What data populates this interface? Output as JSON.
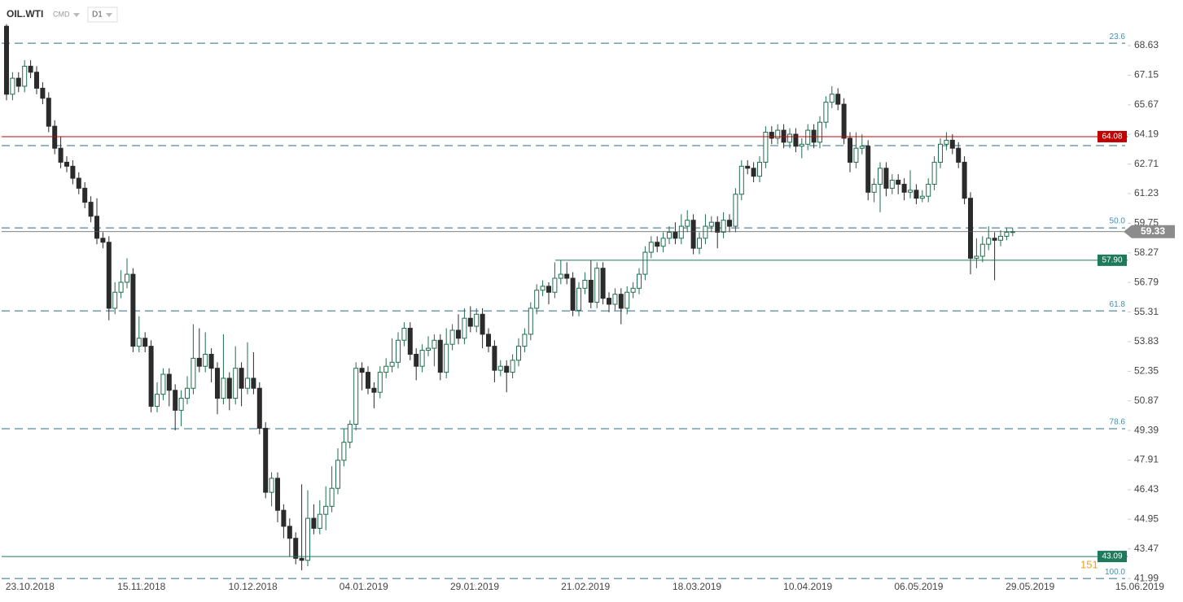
{
  "header": {
    "symbol": "OIL.WTI",
    "group": "CMD",
    "interval": "D1"
  },
  "chart_data": {
    "type": "candlestick",
    "open": [
      69.6,
      66.2,
      67.0,
      66.6,
      67.6,
      67.3,
      66.5,
      66.0,
      64.6,
      63.5,
      62.8,
      62.6,
      62.0,
      61.5,
      60.8,
      60.1,
      59.0,
      58.8,
      55.5,
      56.3,
      56.8,
      57.2,
      53.6,
      54.0,
      53.6,
      50.6,
      51.2,
      52.2,
      51.4,
      50.4,
      51.0,
      51.5,
      53.0,
      52.6,
      53.2,
      52.5,
      51.0,
      52.0,
      51.0,
      52.5,
      51.5,
      52.0,
      51.5,
      49.5,
      46.3,
      47.0,
      45.4,
      44.6,
      44.0,
      43.0,
      42.9,
      45.0,
      44.5,
      45.2,
      45.6,
      46.5,
      47.9,
      48.8,
      49.7,
      52.5,
      52.3,
      51.5,
      51.3,
      52.3,
      52.6,
      52.8,
      53.9,
      54.5,
      53.2,
      52.6,
      53.4,
      53.5,
      53.9,
      52.3,
      53.7,
      54.4,
      54.0,
      55.0,
      54.6,
      55.2,
      54.2,
      53.6,
      52.4,
      52.6,
      52.3,
      52.9,
      53.6,
      54.2,
      55.5,
      56.4,
      56.6,
      56.3,
      57.0,
      57.2,
      57.0,
      55.4,
      56.5,
      56.9,
      55.8,
      57.5,
      56.0,
      55.7,
      56.2,
      55.5,
      56.3,
      56.5,
      57.2,
      58.3,
      58.8,
      58.6,
      59.0,
      59.3,
      59.0,
      59.6,
      59.9,
      58.5,
      59.0,
      59.6,
      59.8,
      59.3,
      59.9,
      59.6,
      61.2,
      62.6,
      62.5,
      62.1,
      62.8,
      64.3,
      64.0,
      64.4,
      63.8,
      64.2,
      63.6,
      63.7,
      64.4,
      63.8,
      64.8,
      65.8,
      66.2,
      65.7,
      64.0,
      62.8,
      63.5,
      63.6,
      61.3,
      61.7,
      62.5,
      61.5,
      61.9,
      61.7,
      61.3,
      61.4,
      61.0,
      61.1,
      61.7,
      62.8,
      63.7,
      63.9,
      63.5,
      62.8,
      61.0,
      58.0,
      58.1,
      58.7,
      59.0,
      58.9,
      59.1,
      59.3
    ],
    "high": [
      69.7,
      67.3,
      67.3,
      67.9,
      67.9,
      67.6,
      66.8,
      66.3,
      64.9,
      64.1,
      63.1,
      62.9,
      62.3,
      61.8,
      61.1,
      61.0,
      59.3,
      59.1,
      56.8,
      57.4,
      58.0,
      57.5,
      55.1,
      54.3,
      53.9,
      51.8,
      52.5,
      52.5,
      51.7,
      51.4,
      52.1,
      54.7,
      54.5,
      54.3,
      53.5,
      52.8,
      54.2,
      52.3,
      53.6,
      52.8,
      53.8,
      53.3,
      51.8,
      49.8,
      47.3,
      47.3,
      45.7,
      45.0,
      44.3,
      46.7,
      46.4,
      45.7,
      45.9,
      46.6,
      47.6,
      48.5,
      49.5,
      49.9,
      52.8,
      52.8,
      52.6,
      51.8,
      52.6,
      53.0,
      54.0,
      54.3,
      54.8,
      54.8,
      53.5,
      53.7,
      54.1,
      54.2,
      54.2,
      54.5,
      54.7,
      55.2,
      55.5,
      55.6,
      55.5,
      55.5,
      54.5,
      53.9,
      52.9,
      52.9,
      53.2,
      54.0,
      54.5,
      55.8,
      56.7,
      56.9,
      56.8,
      57.8,
      57.9,
      57.8,
      57.3,
      56.8,
      57.3,
      57.9,
      57.8,
      57.8,
      56.3,
      56.5,
      56.5,
      56.6,
      56.8,
      57.5,
      58.6,
      59.1,
      59.1,
      59.3,
      59.6,
      59.8,
      60.2,
      60.4,
      60.2,
      59.3,
      60.2,
      60.1,
      60.1,
      60.3,
      60.2,
      61.5,
      62.9,
      62.9,
      62.8,
      63.1,
      64.6,
      64.6,
      64.7,
      64.7,
      64.5,
      64.5,
      64.0,
      64.7,
      64.7,
      65.1,
      66.1,
      66.6,
      66.5,
      66.0,
      64.3,
      64.3,
      64.2,
      63.9,
      62.0,
      62.8,
      62.8,
      62.2,
      62.2,
      62.0,
      62.4,
      61.7,
      61.4,
      62.0,
      63.1,
      64.0,
      64.3,
      64.2,
      63.8,
      63.1,
      61.3,
      59.0,
      59.1,
      59.6,
      59.3,
      59.4,
      59.5,
      59.5
    ],
    "low": [
      65.9,
      65.9,
      66.3,
      66.3,
      67.0,
      66.2,
      65.7,
      64.3,
      63.2,
      62.5,
      62.3,
      61.7,
      61.2,
      60.5,
      59.8,
      58.7,
      58.5,
      54.9,
      55.2,
      56.0,
      56.5,
      53.3,
      53.3,
      53.3,
      50.3,
      50.3,
      50.9,
      50.6,
      49.4,
      49.6,
      50.7,
      51.2,
      52.3,
      52.3,
      51.8,
      50.2,
      50.7,
      50.4,
      50.7,
      50.6,
      51.2,
      51.2,
      49.2,
      46.0,
      45.6,
      44.8,
      44.0,
      43.1,
      42.7,
      42.4,
      42.6,
      44.2,
      44.2,
      44.4,
      45.3,
      46.2,
      47.6,
      48.5,
      49.4,
      51.4,
      51.2,
      50.5,
      51.0,
      52.0,
      52.3,
      52.5,
      53.6,
      52.9,
      51.9,
      52.3,
      53.1,
      52.6,
      51.9,
      52.0,
      53.4,
      53.7,
      53.7,
      54.3,
      54.3,
      53.5,
      53.3,
      51.8,
      52.1,
      51.3,
      52.0,
      52.6,
      53.3,
      53.9,
      55.2,
      56.1,
      55.7,
      56.0,
      56.7,
      56.7,
      55.1,
      55.1,
      56.2,
      55.5,
      55.5,
      55.7,
      55.3,
      55.4,
      54.7,
      55.2,
      56.0,
      56.2,
      56.9,
      58.0,
      58.3,
      58.3,
      58.7,
      58.7,
      58.7,
      59.3,
      58.2,
      58.2,
      58.7,
      59.3,
      58.5,
      59.0,
      59.3,
      59.3,
      60.9,
      62.2,
      61.8,
      61.8,
      62.5,
      63.7,
      63.7,
      63.5,
      63.5,
      63.3,
      63.0,
      63.4,
      63.5,
      63.5,
      64.5,
      65.5,
      65.4,
      63.7,
      62.3,
      62.5,
      63.2,
      60.9,
      60.8,
      60.3,
      61.1,
      61.2,
      61.2,
      60.9,
      61.0,
      60.7,
      60.8,
      60.8,
      61.4,
      62.5,
      63.4,
      63.2,
      62.5,
      60.7,
      57.2,
      57.5,
      57.8,
      58.4,
      56.9,
      58.6,
      58.9,
      59.1
    ],
    "close": [
      66.2,
      67.0,
      66.6,
      67.6,
      67.3,
      66.5,
      66.0,
      64.6,
      63.5,
      62.8,
      62.6,
      62.0,
      61.5,
      60.8,
      60.1,
      59.0,
      58.8,
      55.5,
      56.3,
      56.8,
      57.2,
      53.6,
      54.0,
      53.6,
      50.6,
      51.2,
      52.2,
      51.4,
      50.4,
      51.0,
      51.5,
      53.0,
      52.6,
      53.2,
      52.5,
      51.0,
      52.0,
      51.0,
      52.5,
      51.5,
      52.0,
      51.5,
      49.5,
      46.3,
      47.0,
      45.4,
      44.6,
      44.0,
      43.0,
      42.9,
      45.0,
      44.5,
      45.2,
      45.6,
      46.5,
      47.9,
      48.8,
      49.7,
      52.5,
      52.3,
      51.5,
      51.3,
      52.3,
      52.6,
      52.8,
      53.9,
      54.5,
      53.2,
      52.6,
      53.4,
      53.5,
      53.9,
      52.3,
      53.7,
      54.4,
      54.0,
      55.0,
      54.6,
      55.2,
      54.2,
      53.6,
      52.4,
      52.6,
      52.3,
      52.9,
      53.6,
      54.2,
      55.5,
      56.4,
      56.6,
      56.3,
      57.0,
      57.2,
      57.0,
      55.4,
      56.5,
      56.9,
      55.8,
      57.5,
      56.0,
      55.7,
      56.2,
      55.5,
      56.3,
      56.5,
      57.2,
      58.3,
      58.8,
      58.6,
      59.0,
      59.3,
      59.0,
      59.6,
      59.9,
      58.5,
      59.0,
      59.6,
      59.8,
      59.3,
      59.9,
      59.6,
      61.2,
      62.6,
      62.5,
      62.1,
      62.8,
      64.3,
      64.0,
      64.4,
      63.8,
      64.2,
      63.6,
      63.7,
      64.4,
      63.8,
      64.8,
      65.8,
      66.2,
      65.7,
      64.0,
      62.8,
      63.5,
      63.6,
      61.3,
      61.7,
      62.5,
      61.5,
      61.9,
      61.7,
      61.3,
      61.4,
      61.0,
      61.1,
      61.7,
      62.8,
      63.7,
      63.9,
      63.5,
      62.8,
      61.0,
      58.0,
      58.1,
      58.7,
      59.0,
      58.9,
      59.1,
      59.3,
      59.33
    ],
    "up_color": "#1f6e4e",
    "down_color": "#2b2b2b",
    "xlim": [
      -1.08,
      186.08
    ],
    "xticks": [
      {
        "value": 3.9,
        "label": "23.10.2018"
      },
      {
        "value": 22.4,
        "label": "15.11.2018"
      },
      {
        "value": 40.9,
        "label": "10.12.2018"
      },
      {
        "value": 59.3,
        "label": "04.01.2019"
      },
      {
        "value": 77.7,
        "label": "29.01.2019"
      },
      {
        "value": 96.1,
        "label": "21.02.2019"
      },
      {
        "value": 114.6,
        "label": "18.03.2019"
      },
      {
        "value": 133.0,
        "label": "10.04.2019"
      },
      {
        "value": 151.4,
        "label": "06.05.2019"
      },
      {
        "value": 169.9,
        "label": "29.05.2019"
      },
      {
        "value": 188.1,
        "label": "15.06.2019"
      }
    ],
    "ylim": [
      41.71,
      70.91
    ],
    "yticks": [
      68.63,
      67.15,
      65.67,
      64.19,
      62.71,
      61.23,
      59.75,
      58.27,
      56.79,
      55.31,
      53.83,
      52.35,
      50.87,
      49.39,
      47.91,
      46.43,
      44.95,
      43.47,
      41.99
    ],
    "levels": [
      {
        "value": 68.75,
        "label": "23.6"
      },
      {
        "value": 63.63
      },
      {
        "value": 59.52,
        "label": "50.0"
      },
      {
        "value": 55.37,
        "label": "61.8"
      },
      {
        "value": 49.48,
        "label": "78.6"
      },
      {
        "value": 41.99,
        "label": "100.0"
      }
    ],
    "level_color": "#2b6e8a",
    "price_lines": [
      {
        "value": 64.08,
        "label": "64.08",
        "color": "#c00000"
      },
      {
        "value": 57.9,
        "label": "57.90",
        "color": "#1e7a5a"
      },
      {
        "value": 43.09,
        "label": "43.09",
        "color": "#1e7a5a"
      }
    ],
    "last_price": {
      "value": 59.33,
      "color": "#8c8c8c"
    },
    "annotation": {
      "text": "151",
      "color": "#f0a020"
    }
  }
}
